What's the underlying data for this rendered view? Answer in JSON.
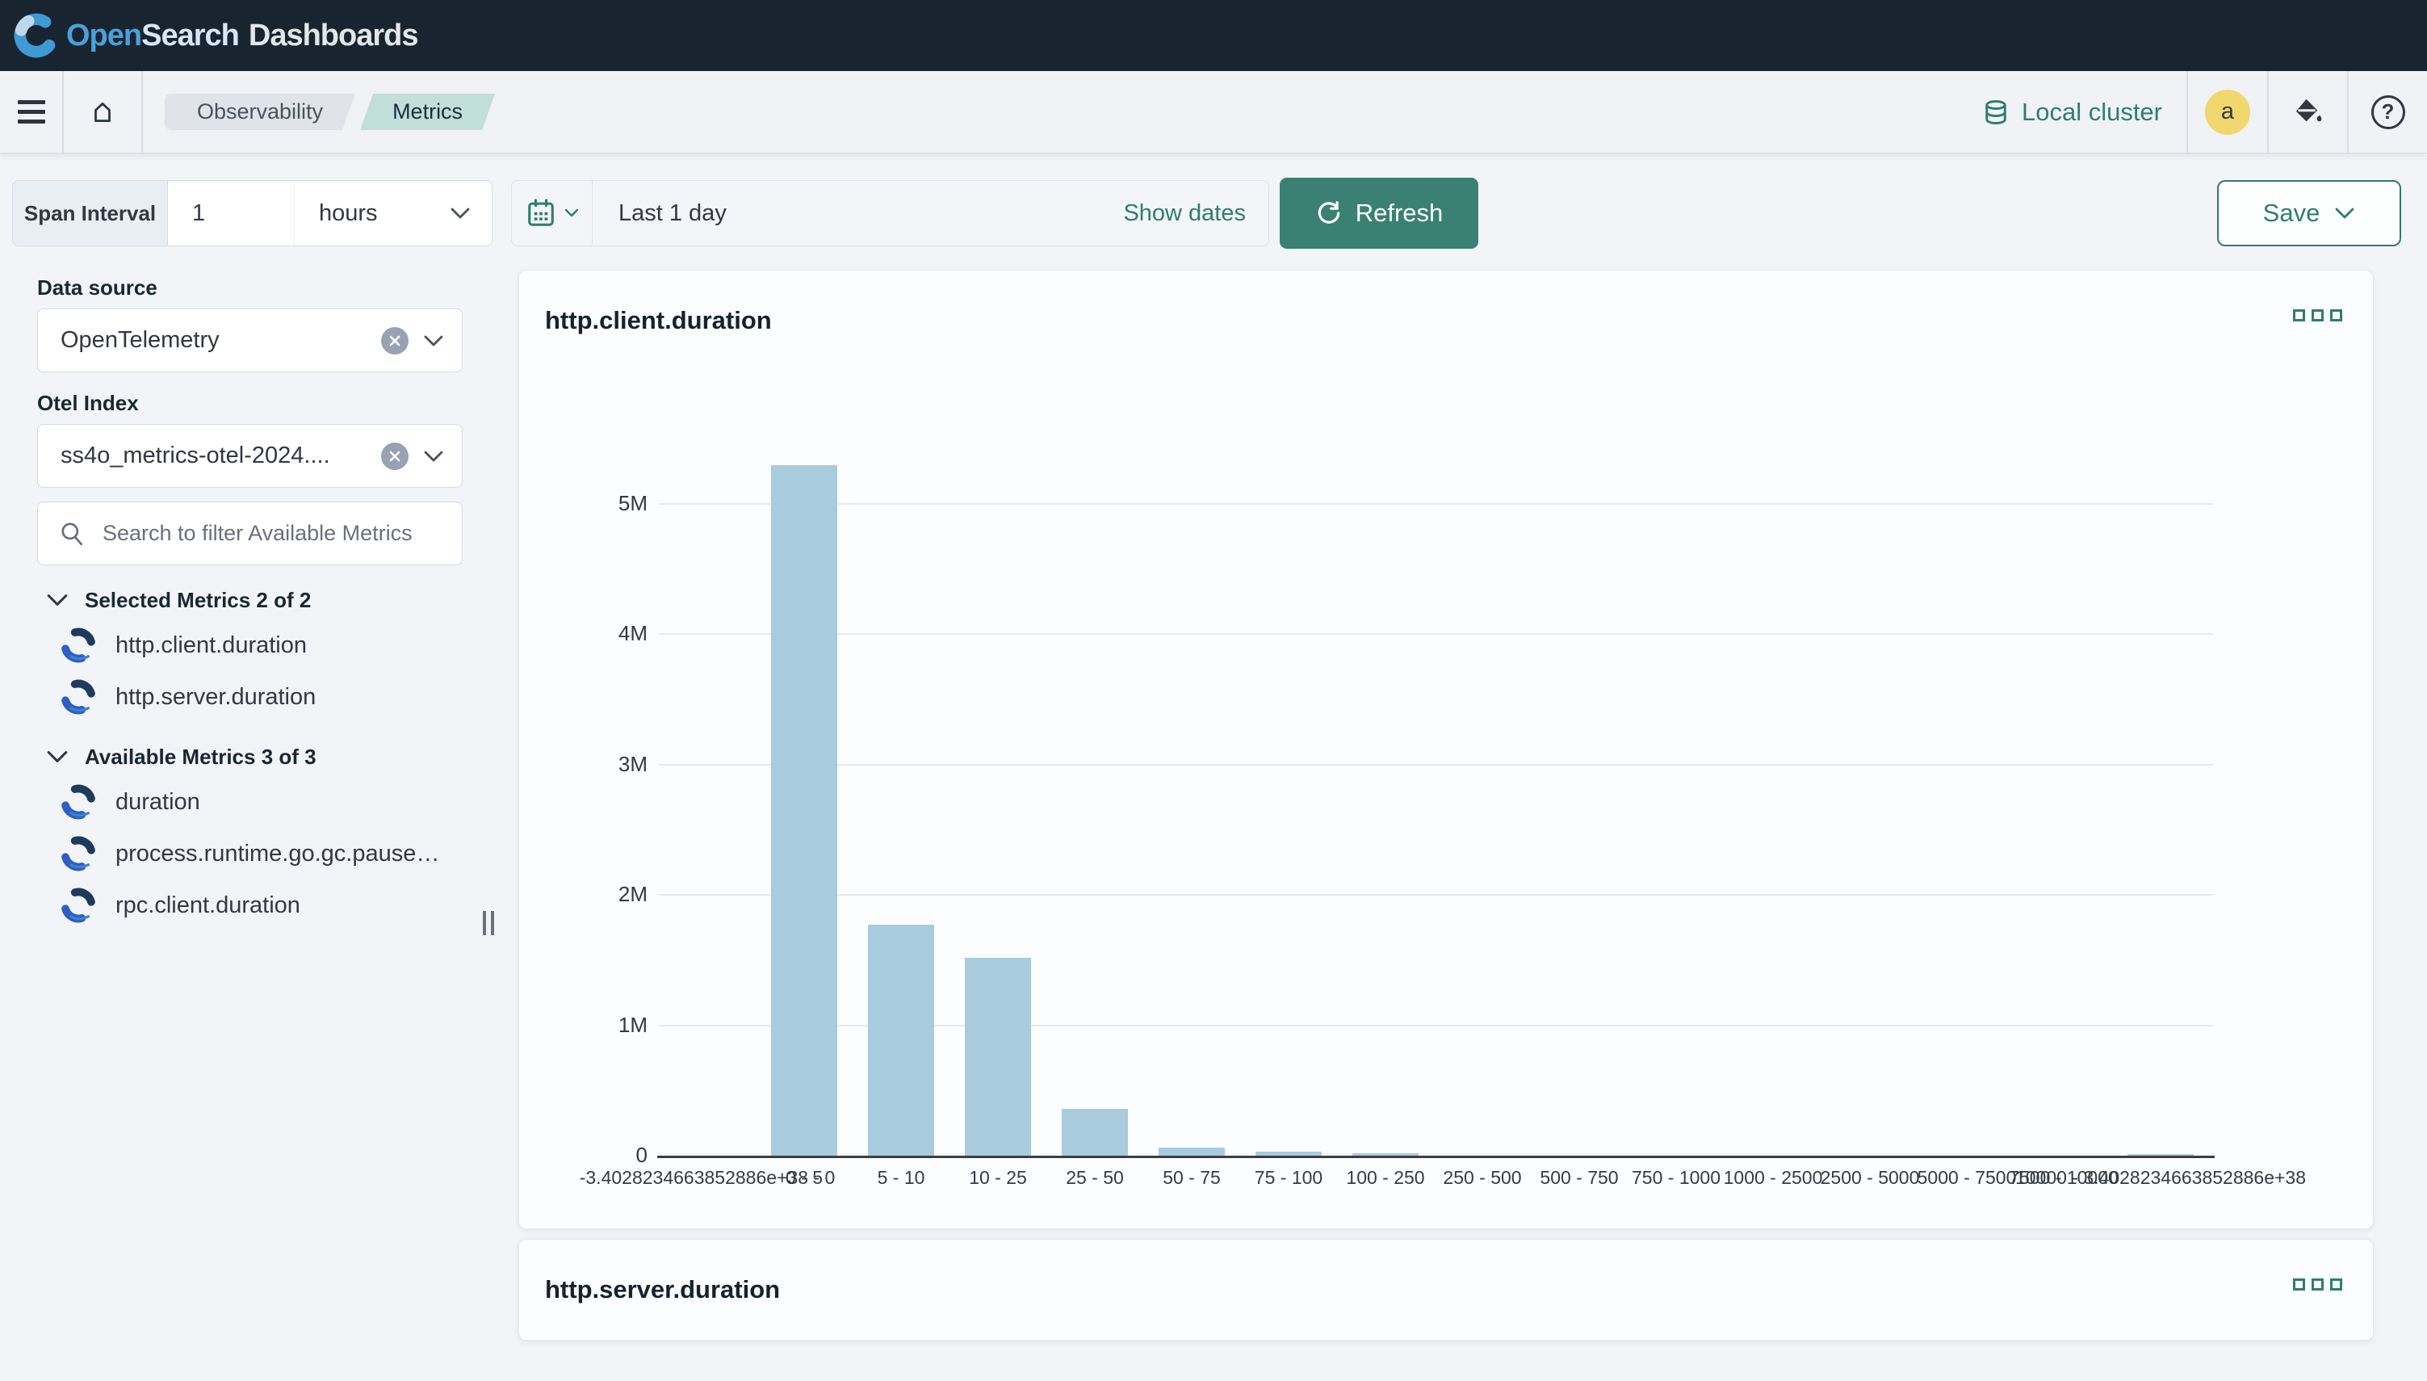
{
  "header": {
    "logo": {
      "open": "Open",
      "search": "Search",
      "dashboards": "Dashboards"
    }
  },
  "navbar": {
    "breadcrumbs": [
      {
        "label": "Observability"
      },
      {
        "label": "Metrics"
      }
    ],
    "cluster_label": "Local cluster",
    "avatar_initial": "a"
  },
  "controls": {
    "span_interval_label": "Span Interval",
    "span_value": "1",
    "span_unit": "hours",
    "date_range": "Last 1 day",
    "show_dates_label": "Show dates",
    "refresh_label": "Refresh",
    "save_label": "Save"
  },
  "sidebar": {
    "data_source_label": "Data source",
    "data_source_value": "OpenTelemetry",
    "otel_index_label": "Otel Index",
    "otel_index_value": "ss4o_metrics-otel-2024....",
    "search_placeholder": "Search to filter Available Metrics",
    "selected_header": "Selected Metrics 2 of 2",
    "selected_metrics": [
      "http.client.duration",
      "http.server.duration"
    ],
    "available_header": "Available Metrics 3 of 3",
    "available_metrics": [
      "duration",
      "process.runtime.go.gc.pause…",
      "rpc.client.duration"
    ]
  },
  "panels": [
    {
      "title": "http.client.duration"
    },
    {
      "title": "http.server.duration"
    }
  ],
  "chart_data": {
    "type": "bar",
    "title": "http.client.duration",
    "xlabel": "",
    "ylabel": "",
    "categories": [
      "-3.4028234663852886e+38 - 0",
      "0 - 5",
      "5 - 10",
      "10 - 25",
      "25 - 50",
      "50 - 75",
      "75 - 100",
      "100 - 250",
      "250 - 500",
      "500 - 750",
      "750 - 1000",
      "1000 - 2500",
      "2500 - 5000",
      "5000 - 7500",
      "7500 - 10000",
      "10000 - 3.4028234663852886e+38"
    ],
    "values": [
      0,
      5300000,
      1770000,
      1520000,
      360000,
      65000,
      30000,
      20000,
      0,
      0,
      0,
      0,
      0,
      0,
      0,
      15000
    ],
    "ylim": [
      0,
      5500000
    ],
    "yticks": [
      {
        "value": 0,
        "label": "0"
      },
      {
        "value": 1000000,
        "label": "1M"
      },
      {
        "value": 2000000,
        "label": "2M"
      },
      {
        "value": 3000000,
        "label": "3M"
      },
      {
        "value": 4000000,
        "label": "4M"
      },
      {
        "value": 5000000,
        "label": "5M"
      }
    ],
    "bar_color": "#a8cbde",
    "grid": true,
    "legend": false
  }
}
